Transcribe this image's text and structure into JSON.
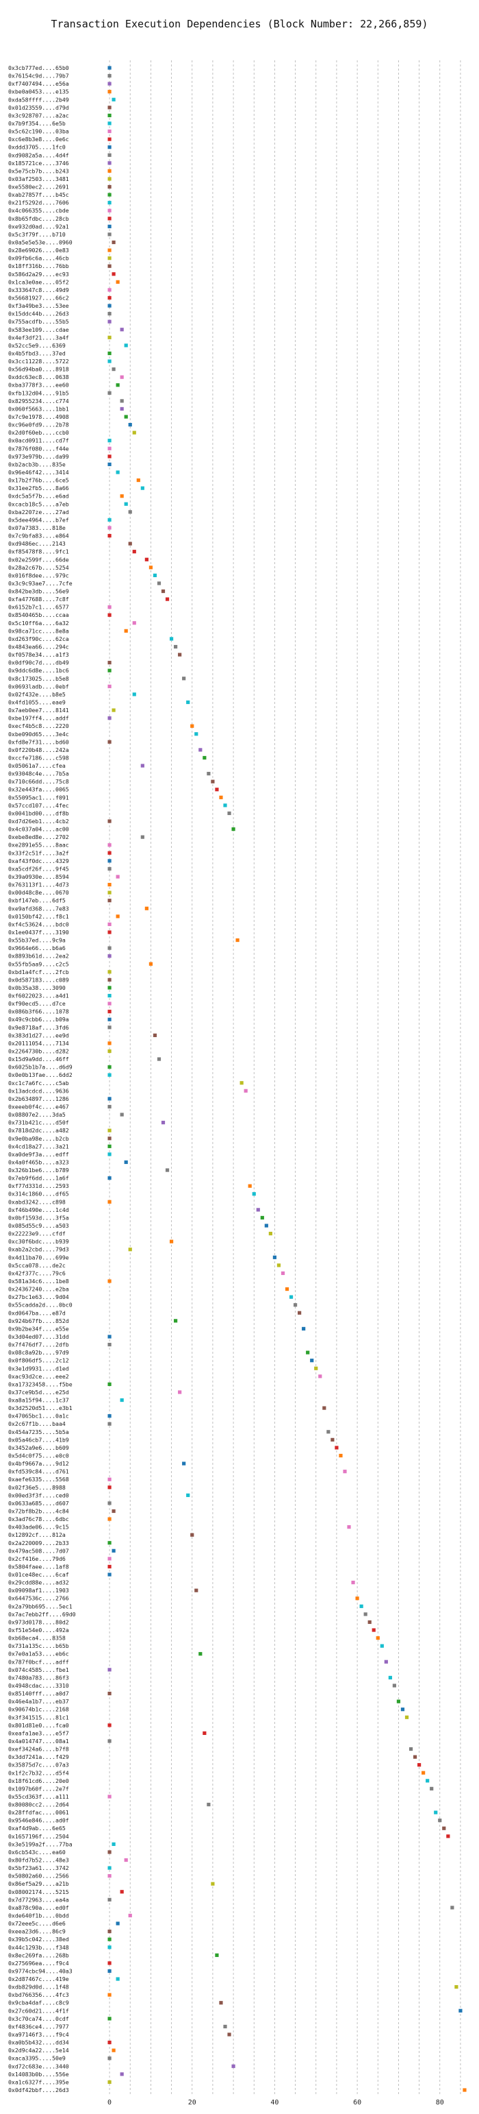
{
  "chart_data": {
    "type": "scatter",
    "title": "Transaction Execution Dependencies (Block Number: 22,266,859)",
    "xlabel": "",
    "ylabel": "",
    "xlim": [
      -2,
      87
    ],
    "xticks": [
      0,
      20,
      40,
      60,
      80
    ],
    "grid": "dashed",
    "legend": "none",
    "series_colors": [
      "#1f77b4",
      "#ff7f0e",
      "#2ca02c",
      "#d62728",
      "#9467bd",
      "#8c564b",
      "#e377c2",
      "#7f7f7f",
      "#bcbd22",
      "#17becf"
    ],
    "transactions": [
      {
        "label": "0x3cb777ed....65b0",
        "x": 0
      },
      {
        "label": "0x76154c9d....79b7",
        "x": 0
      },
      {
        "label": "0xf7407494....e56a",
        "x": 0
      },
      {
        "label": "0xbe0a0453....e135",
        "x": 0
      },
      {
        "label": "0xda58ffff....2b49",
        "x": 1
      },
      {
        "label": "0x01d23559....d79d",
        "x": 0
      },
      {
        "label": "0x3c928707....a2ac",
        "x": 0
      },
      {
        "label": "0x7b9f354....6e5b",
        "x": 0
      },
      {
        "label": "0x5c62c190....03ba",
        "x": 0
      },
      {
        "label": "0xc6e8b3e8....0e6c",
        "x": 0
      },
      {
        "label": "0xddd3705....1fc0",
        "x": 0
      },
      {
        "label": "0xd9082a5a....4d4f",
        "x": 0
      },
      {
        "label": "0x185721ce....3746",
        "x": 0
      },
      {
        "label": "0x5e75cb7b....b243",
        "x": 0
      },
      {
        "label": "0x03af2503....3481",
        "x": 0
      },
      {
        "label": "0xe5580ec2....2691",
        "x": 0
      },
      {
        "label": "0xab27857f....b45c",
        "x": 0
      },
      {
        "label": "0x21f5292d....7606",
        "x": 0
      },
      {
        "label": "0x4c066355....cbde",
        "x": 0
      },
      {
        "label": "0x8b65fdbc....28cb",
        "x": 0
      },
      {
        "label": "0xe932d0ad....92a1",
        "x": 0
      },
      {
        "label": "0x5c3f79f....b710",
        "x": 0
      },
      {
        "label": "0x0a5e5e53e....0960",
        "x": 1
      },
      {
        "label": "0x28e69026....0e83",
        "x": 0
      },
      {
        "label": "0x09fb6c6a....46cb",
        "x": 0
      },
      {
        "label": "0x18ff316b....76bb",
        "x": 0
      },
      {
        "label": "0x586d2a29....ec93",
        "x": 1
      },
      {
        "label": "0x1ca3e0ae....05f2",
        "x": 2
      },
      {
        "label": "0x333647c8....49d9",
        "x": 0
      },
      {
        "label": "0x56681927....66c2",
        "x": 0
      },
      {
        "label": "0xf3a49be3....53ee",
        "x": 0
      },
      {
        "label": "0x15ddc44b....26d3",
        "x": 0
      },
      {
        "label": "0x755acdfb....55b5",
        "x": 0
      },
      {
        "label": "0x583ee109....cdae",
        "x": 3
      },
      {
        "label": "0x4ef3df21....3a4f",
        "x": 0
      },
      {
        "label": "0x52cc5e9....6369",
        "x": 4
      },
      {
        "label": "0x4b5fbd3....37ed",
        "x": 0
      },
      {
        "label": "0x3cc11228....5722",
        "x": 0
      },
      {
        "label": "0x56d94ba0....8918",
        "x": 1
      },
      {
        "label": "0xddc63ec8....0638",
        "x": 3
      },
      {
        "label": "0xba3778f3....ee60",
        "x": 2
      },
      {
        "label": "0xfb132d04....91b5",
        "x": 0
      },
      {
        "label": "0x82955234....c774",
        "x": 3
      },
      {
        "label": "0x060f5663....1bb1",
        "x": 3
      },
      {
        "label": "0x7c9e1978....4908",
        "x": 4
      },
      {
        "label": "0xc96e0fd9....2b78",
        "x": 5
      },
      {
        "label": "0x2d0f60eb....ccb0",
        "x": 6
      },
      {
        "label": "0x0acd0911....cd7f",
        "x": 0
      },
      {
        "label": "0x7876f080....f44e",
        "x": 0
      },
      {
        "label": "0x973e979b....da99",
        "x": 0
      },
      {
        "label": "0xb2acb3b....835e",
        "x": 0
      },
      {
        "label": "0x96e46f42....3414",
        "x": 2
      },
      {
        "label": "0x17b2f76b....6ce5",
        "x": 7
      },
      {
        "label": "0x31ee2fb5....8a66",
        "x": 8
      },
      {
        "label": "0xdc5a5f7b....e6ad",
        "x": 3
      },
      {
        "label": "0xcacb18c5....a7eb",
        "x": 4
      },
      {
        "label": "0xba2207ze....27ad",
        "x": 5
      },
      {
        "label": "0x5dee4964....b7ef",
        "x": 0
      },
      {
        "label": "0x07a7383....818e",
        "x": 0
      },
      {
        "label": "0x7c9bfa83....e864",
        "x": 0
      },
      {
        "label": "0xd9486ec....2143",
        "x": 5
      },
      {
        "label": "0xf85478f8....9fc1",
        "x": 6
      },
      {
        "label": "0x02e2599f....66de",
        "x": 9
      },
      {
        "label": "0x28a2c67b....5254",
        "x": 10
      },
      {
        "label": "0x016f8dee....979c",
        "x": 11
      },
      {
        "label": "0x3c9c93ae7....7cfe",
        "x": 12
      },
      {
        "label": "0x842be3db....56e9",
        "x": 13
      },
      {
        "label": "0xfa477688....7c8f",
        "x": 14
      },
      {
        "label": "0x6152b7c1....6577",
        "x": 0
      },
      {
        "label": "0x8540465b....ccaa",
        "x": 0
      },
      {
        "label": "0x5c10ff6a....6a32",
        "x": 6
      },
      {
        "label": "0x98ca71cc....8e8a",
        "x": 4
      },
      {
        "label": "0xd263f90c....62ca",
        "x": 15
      },
      {
        "label": "0x4843ea66....294c",
        "x": 16
      },
      {
        "label": "0xf0578e34....a1f3",
        "x": 17
      },
      {
        "label": "0x0df90c7d....db49",
        "x": 0
      },
      {
        "label": "0x9ddc6d8e....1bc6",
        "x": 0
      },
      {
        "label": "0x8c173025....b5e8",
        "x": 18
      },
      {
        "label": "0x0693ladb....0ebf",
        "x": 0
      },
      {
        "label": "0x02f432e....b8e5",
        "x": 6
      },
      {
        "label": "0x4fd1055....eae9",
        "x": 19
      },
      {
        "label": "0x7aeb0ee7....8141",
        "x": 1
      },
      {
        "label": "0xbe197ff4....addf",
        "x": 0
      },
      {
        "label": "0xecf4b5c8....2220",
        "x": 20
      },
      {
        "label": "0xbe090d65....3e4c",
        "x": 21
      },
      {
        "label": "0xfd8e7f31....bd60",
        "x": 0
      },
      {
        "label": "0x0f220b48....242a",
        "x": 22
      },
      {
        "label": "0xccfe7186....c598",
        "x": 23
      },
      {
        "label": "0x05061a7....cfea",
        "x": 8
      },
      {
        "label": "0x93048c4e....7b5a",
        "x": 24
      },
      {
        "label": "0x710c66dd....75c8",
        "x": 25
      },
      {
        "label": "0x32e443fa....0065",
        "x": 26
      },
      {
        "label": "0x55095ac1....f091",
        "x": 27
      },
      {
        "label": "0x57ccd107....4fec",
        "x": 28
      },
      {
        "label": "0x0041bd00....df8b",
        "x": 29
      },
      {
        "label": "0xd7d26eb1....4cb2",
        "x": 0
      },
      {
        "label": "0x4c037a04....ac00",
        "x": 30
      },
      {
        "label": "0xebe8ed8e....2702",
        "x": 8
      },
      {
        "label": "0xe2891e55....8aac",
        "x": 0
      },
      {
        "label": "0x33f2c51f....3a2f",
        "x": 0
      },
      {
        "label": "0xaf43f0dc....4329",
        "x": 0
      },
      {
        "label": "0xa5cdf26f....9f45",
        "x": 0
      },
      {
        "label": "0x39a0930e....8594",
        "x": 2
      },
      {
        "label": "0x763113f1....4d73",
        "x": 0
      },
      {
        "label": "0x00d48c8e....0670",
        "x": 0
      },
      {
        "label": "0xbf147eb....6df5",
        "x": 0
      },
      {
        "label": "0xe9afd368....7e83",
        "x": 9
      },
      {
        "label": "0x0150bf42....f8c1",
        "x": 2
      },
      {
        "label": "0xf4c53624....bdc0",
        "x": 0
      },
      {
        "label": "0x1ee0437f....3190",
        "x": 0
      },
      {
        "label": "0x55b37ed....9c9a",
        "x": 31
      },
      {
        "label": "0x9664e66....b6a6",
        "x": 0
      },
      {
        "label": "0x8893b61d....2ea2",
        "x": 0
      },
      {
        "label": "0x55fb5aa9....c2c5",
        "x": 10
      },
      {
        "label": "0xbd1a4fcf....2fcb",
        "x": 0
      },
      {
        "label": "0x0d587183....c089",
        "x": 0
      },
      {
        "label": "0x0b35a38....3090",
        "x": 0
      },
      {
        "label": "0xf6022023....a4d1",
        "x": 0
      },
      {
        "label": "0xf90ecd5....d7ce",
        "x": 0
      },
      {
        "label": "0x086b3f66....1078",
        "x": 0
      },
      {
        "label": "0x49c9cbb6....b09a",
        "x": 0
      },
      {
        "label": "0x9e8718af....3fd6",
        "x": 0
      },
      {
        "label": "0x383d1d27....ee9d",
        "x": 11
      },
      {
        "label": "0x20111054....7134",
        "x": 0
      },
      {
        "label": "0x2264730b....d282",
        "x": 0
      },
      {
        "label": "0x15d9a9dd....46ff",
        "x": 12
      },
      {
        "label": "0x6025b1b7a....d6d9",
        "x": 0
      },
      {
        "label": "0x0e0b13fae....6dd2",
        "x": 0
      },
      {
        "label": "0xc1c7a6fc....c5ab",
        "x": 32
      },
      {
        "label": "0x13adcdcd....9636",
        "x": 33
      },
      {
        "label": "0x2b634897....1286",
        "x": 0
      },
      {
        "label": "0xeeeb0f4c....e467",
        "x": 0
      },
      {
        "label": "0x08807e2....3da5",
        "x": 3
      },
      {
        "label": "0x731b421c....d50f",
        "x": 13
      },
      {
        "label": "0x7818d2dc....a482",
        "x": 0
      },
      {
        "label": "0x9e0ba98e....b2cb",
        "x": 0
      },
      {
        "label": "0x4cd18a27....3a21",
        "x": 0
      },
      {
        "label": "0xa0de9f3a....edff",
        "x": 0
      },
      {
        "label": "0x4a0f465b....a323",
        "x": 4
      },
      {
        "label": "0x326b1be6....b789",
        "x": 14
      },
      {
        "label": "0x7eb9f6dd....1a6f",
        "x": 0
      },
      {
        "label": "0xf77d331d....2593",
        "x": 34
      },
      {
        "label": "0x314c1860....df65",
        "x": 35
      },
      {
        "label": "0xabd3242....c898",
        "x": 0
      },
      {
        "label": "0xf46b490e....1c4d",
        "x": 36
      },
      {
        "label": "0x0bf1593d....3f5a",
        "x": 37
      },
      {
        "label": "0x085d55c9....a503",
        "x": 38
      },
      {
        "label": "0x22223e9....cfdf",
        "x": 39
      },
      {
        "label": "0xc30f6bdc....b939",
        "x": 15
      },
      {
        "label": "0xab2a2cbd....79d3",
        "x": 5
      },
      {
        "label": "0x4d11ba70....699e",
        "x": 40
      },
      {
        "label": "0x5cca078....de2c",
        "x": 41
      },
      {
        "label": "0x42f377c....79c6",
        "x": 42
      },
      {
        "label": "0x581a34c6....1be8",
        "x": 0
      },
      {
        "label": "0x24367240....e2ba",
        "x": 43
      },
      {
        "label": "0x27bc1e63....9d04",
        "x": 44
      },
      {
        "label": "0x55cadda2d....0bc0",
        "x": 45
      },
      {
        "label": "0xd0647ba....e87d",
        "x": 46
      },
      {
        "label": "0x924b67fb....852d",
        "x": 16
      },
      {
        "label": "0x9b2be34f....e55e",
        "x": 47
      },
      {
        "label": "0x3d04ed07....31dd",
        "x": 0
      },
      {
        "label": "0x7f476df7....2dfb",
        "x": 0
      },
      {
        "label": "0x08c8a92b....97d9",
        "x": 48
      },
      {
        "label": "0x0f806df5....2c12",
        "x": 49
      },
      {
        "label": "0x3e1d9931....d1ed",
        "x": 50
      },
      {
        "label": "0xac93d2ce....eee2",
        "x": 51
      },
      {
        "label": "0xa17323458....f5be",
        "x": 0
      },
      {
        "label": "0x37ce9b5d....e25d",
        "x": 17
      },
      {
        "label": "0xa8a15f94....1c37",
        "x": 3
      },
      {
        "label": "0x3d2520d51....e3b1",
        "x": 52
      },
      {
        "label": "0x47065bc1....0a1c",
        "x": 0
      },
      {
        "label": "0x2c67f1b....baa4",
        "x": 0
      },
      {
        "label": "0x454a7235....5b5a",
        "x": 53
      },
      {
        "label": "0x05a46cb7....41b9",
        "x": 54
      },
      {
        "label": "0x3452a9e6....b609",
        "x": 55
      },
      {
        "label": "0x5d4c0f75....e0c0",
        "x": 56
      },
      {
        "label": "0x4bf9667a....9d12",
        "x": 18
      },
      {
        "label": "0xfd539c84....d761",
        "x": 57
      },
      {
        "label": "0xaefe6335....5568",
        "x": 0
      },
      {
        "label": "0x02f36e5....8988",
        "x": 0
      },
      {
        "label": "0x00ed3f3f....ced0",
        "x": 19
      },
      {
        "label": "0x0633a685....d607",
        "x": 0
      },
      {
        "label": "0x72bf8b2b....4c84",
        "x": 1
      },
      {
        "label": "0x3ad76c78....6dbc",
        "x": 0
      },
      {
        "label": "0x403ade06....9c15",
        "x": 58
      },
      {
        "label": "0x12892cf....812a",
        "x": 20
      },
      {
        "label": "0x2a220009....2b33",
        "x": 0
      },
      {
        "label": "0x479ac508....7d07",
        "x": 1
      },
      {
        "label": "0x2cf416e....79d6",
        "x": 0
      },
      {
        "label": "0x5804faee....1af8",
        "x": 0
      },
      {
        "label": "0x01ce48ec....6caf",
        "x": 0
      },
      {
        "label": "0x29cdd88e....ad32",
        "x": 59
      },
      {
        "label": "0x09098af1....1903",
        "x": 21
      },
      {
        "label": "0x6447536c....2766",
        "x": 60
      },
      {
        "label": "0x2a79bb695....5ec1",
        "x": 61
      },
      {
        "label": "0x7ac7ebb2ff....69d0",
        "x": 62
      },
      {
        "label": "0x973d0178....80d2",
        "x": 63
      },
      {
        "label": "0xf51e54e0....492a",
        "x": 64
      },
      {
        "label": "0xb68eca4....8358",
        "x": 65
      },
      {
        "label": "0x731a135c....b65b",
        "x": 66
      },
      {
        "label": "0x7e0a1a53....eb6c",
        "x": 22
      },
      {
        "label": "0x787f0bcf....adff",
        "x": 67
      },
      {
        "label": "0x074c4585....fbe1",
        "x": 0
      },
      {
        "label": "0x7480a783....86f3",
        "x": 68
      },
      {
        "label": "0x4948cdac....3310",
        "x": 69
      },
      {
        "label": "0x85140fff....a0d7",
        "x": 0
      },
      {
        "label": "0x46e4a1b7....eb37",
        "x": 70
      },
      {
        "label": "0x90674b1c....2168",
        "x": 71
      },
      {
        "label": "0x3f341515....81c1",
        "x": 72
      },
      {
        "label": "0x801d81e0....fca0",
        "x": 0
      },
      {
        "label": "0xeafa1ae3....e5f7",
        "x": 23
      },
      {
        "label": "0x4a014747....08a1",
        "x": 0
      },
      {
        "label": "0xef3424a6....b7f8",
        "x": 73
      },
      {
        "label": "0x3dd7241a....f429",
        "x": 74
      },
      {
        "label": "0x35875d7c....07a3",
        "x": 75
      },
      {
        "label": "0x1f2c7b32....d5f4",
        "x": 76
      },
      {
        "label": "0x18f61cd6....20e0",
        "x": 77
      },
      {
        "label": "0x1097b60f....2e7f",
        "x": 78
      },
      {
        "label": "0x55cd363f....a111",
        "x": 0
      },
      {
        "label": "0x80080cc2....2d64",
        "x": 24
      },
      {
        "label": "0x28ffdfac....0061",
        "x": 79
      },
      {
        "label": "0x9546e846....ad0f",
        "x": 80
      },
      {
        "label": "0xaf4d9ab....6e65",
        "x": 81
      },
      {
        "label": "0x1657196f....2504",
        "x": 82
      },
      {
        "label": "0x3e5199a2f....77ba",
        "x": 1
      },
      {
        "label": "0x6cb543c....ea60",
        "x": 0
      },
      {
        "label": "0x80fd7b52....48e3",
        "x": 4
      },
      {
        "label": "0x5bf23a61....3742",
        "x": 0
      },
      {
        "label": "0x50802a60....2566",
        "x": 0
      },
      {
        "label": "0x86ef5a29....a21b",
        "x": 25
      },
      {
        "label": "0x08002174....5215",
        "x": 3
      },
      {
        "label": "0x7d772963....ea4a",
        "x": 0
      },
      {
        "label": "0xa878c90a....ed0f",
        "x": 83
      },
      {
        "label": "0xde640f1b....0bdd",
        "x": 5
      },
      {
        "label": "0x72eee5c....d6e6",
        "x": 2
      },
      {
        "label": "0xeea23d6....86c9",
        "x": 0
      },
      {
        "label": "0x39b5c042....38ed",
        "x": 0
      },
      {
        "label": "0x44c1293b....f348",
        "x": 0
      },
      {
        "label": "0x8ec269fa....268b",
        "x": 26
      },
      {
        "label": "0x275696ea....f9c4",
        "x": 0
      },
      {
        "label": "0x9774cbc94....40a3",
        "x": 0
      },
      {
        "label": "0x2d87467c....419e",
        "x": 2
      },
      {
        "label": "0xdb829d0d....1f48",
        "x": 84
      },
      {
        "label": "0xbd766356....4fc3",
        "x": 0
      },
      {
        "label": "0x9cba4daf....c8c9",
        "x": 27
      },
      {
        "label": "0x27c60d21....4f1f",
        "x": 85
      },
      {
        "label": "0x3c70ca74....0cdf",
        "x": 0
      },
      {
        "label": "0xf4836ce4....7977",
        "x": 28
      },
      {
        "label": "0xa97146f3....f9c4",
        "x": 29
      },
      {
        "label": "0xa0b5b432....dd34",
        "x": 0
      },
      {
        "label": "0x2d9c4a22....5e14",
        "x": 1
      },
      {
        "label": "0xaca3395....50e9",
        "x": 0
      },
      {
        "label": "0xd72c683e....3440",
        "x": 30
      },
      {
        "label": "0x14083b0b....556e",
        "x": 3
      },
      {
        "label": "0xa1c6327f....395e",
        "x": 0
      },
      {
        "label": "0x0df42bbf....26d3",
        "x": 86
      }
    ]
  }
}
